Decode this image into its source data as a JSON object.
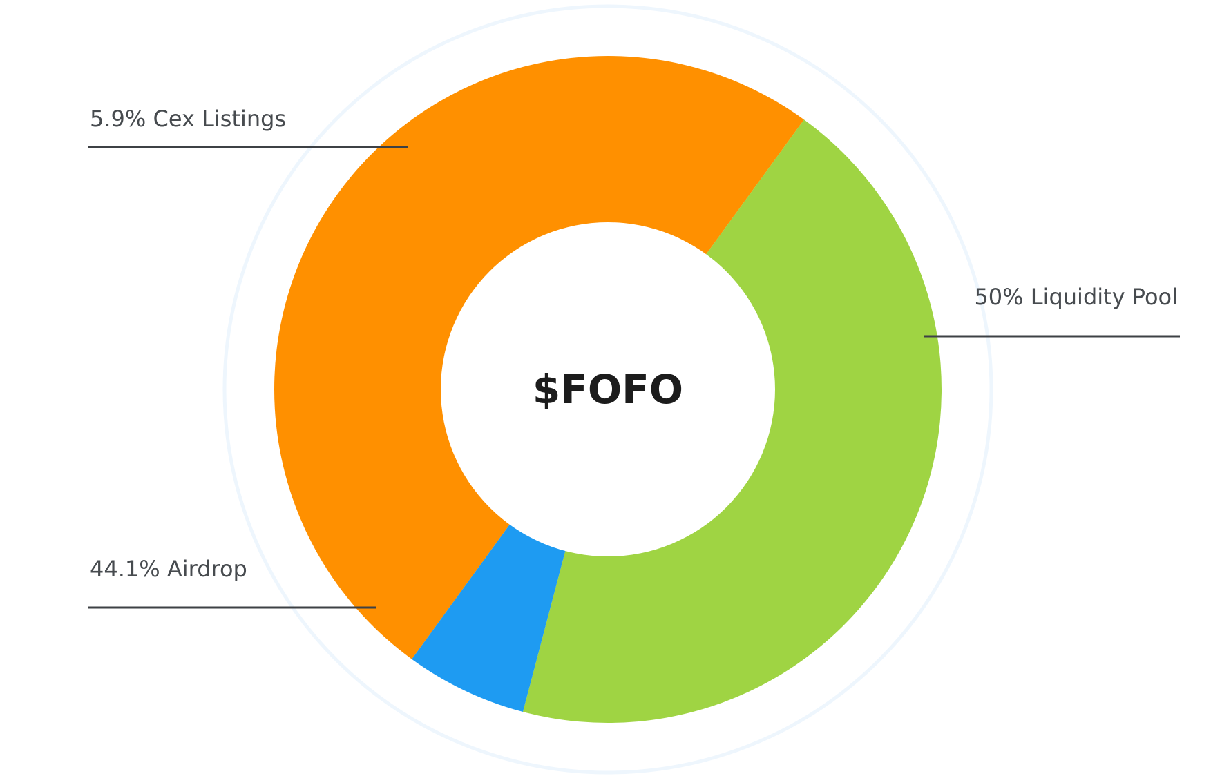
{
  "chart_data": {
    "type": "pie",
    "variant": "donut",
    "center_label": "$FOFO",
    "slices": [
      {
        "label": "Liquidity Pool",
        "value": 50,
        "display": "50% Liquidity Pool",
        "color": "#ff9000"
      },
      {
        "label": "Airdrop",
        "value": 44.1,
        "display": "44.1% Airdrop",
        "color": "#9fd443"
      },
      {
        "label": "Cex Listings",
        "value": 5.9,
        "display": "5.9% Cex Listings",
        "color": "#1e9bf2"
      }
    ],
    "legend": "none",
    "labels": "outside-with-leader-lines"
  }
}
